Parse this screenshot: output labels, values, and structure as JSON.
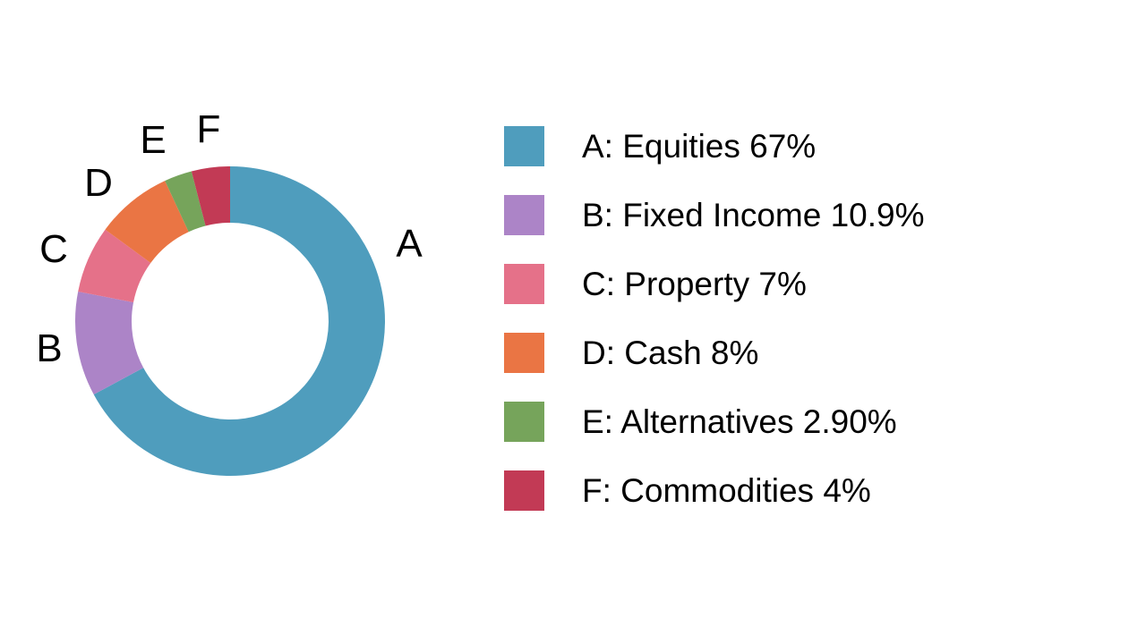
{
  "page": {
    "background": "#ffffff"
  },
  "chart_data": {
    "type": "pie",
    "subtype": "donut",
    "title": "",
    "start_angle_deg": 0,
    "direction": "clockwise",
    "inner_radius_ratio": 0.636,
    "legend_position": "right",
    "grid": false,
    "slices": [
      {
        "letter": "A",
        "label": "Equities",
        "value_pct": 67,
        "display": "67%",
        "color": "#4F9DBD",
        "legend_text": "A: Equities 67%"
      },
      {
        "letter": "B",
        "label": "Fixed Income",
        "value_pct": 10.9,
        "display": "10.9%",
        "color": "#AC84C7",
        "legend_text": "B: Fixed Income 10.9%"
      },
      {
        "letter": "C",
        "label": "Property",
        "value_pct": 7,
        "display": "7%",
        "color": "#E57189",
        "legend_text": "C: Property 7%"
      },
      {
        "letter": "D",
        "label": "Cash",
        "value_pct": 8,
        "display": "8%",
        "color": "#EA7544",
        "legend_text": "D: Cash 8%"
      },
      {
        "letter": "E",
        "label": "Alternatives",
        "value_pct": 2.9,
        "display": "2.90%",
        "color": "#76A45B",
        "legend_text": "E: Alternatives 2.90%"
      },
      {
        "letter": "F",
        "label": "Commodities",
        "value_pct": 4,
        "display": "4%",
        "color": "#C23A55",
        "legend_text": "F: Commodities 4%"
      }
    ]
  }
}
